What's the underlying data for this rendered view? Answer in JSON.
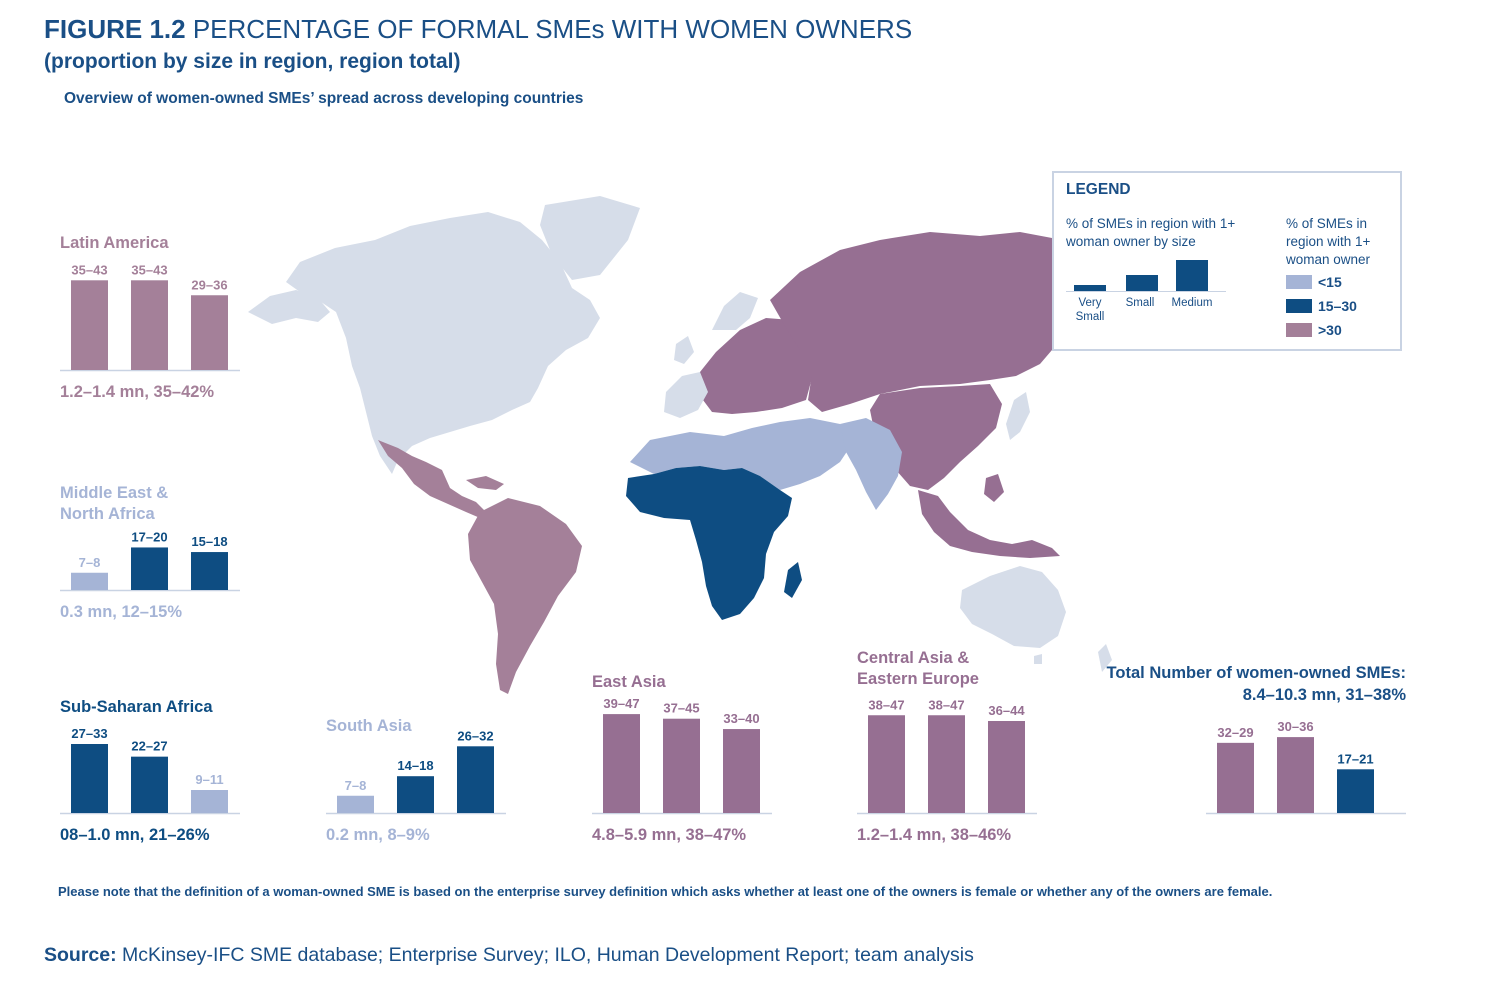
{
  "header": {
    "figure_label": "FIGURE 1.2",
    "title": "PERCENTAGE OF FORMAL SMEs WITH WOMEN OWNERS",
    "subtitle": "(proportion by size in region, region total)",
    "overview": "Overview of women-owned SMEs’ spread across developing countries"
  },
  "legend": {
    "title": "LEGEND",
    "size_heading": "% of SMEs in region with 1+ woman owner by size",
    "size_labels": [
      "Very Small",
      "Small",
      "Medium"
    ],
    "color_heading": "% of SMEs in region with 1+ woman owner",
    "color_classes": [
      {
        "label": "<15",
        "color": "#a5b4d6"
      },
      {
        "label": "15–30",
        "color": "#0e4d82"
      },
      {
        "label": ">30",
        "color": "#a48099"
      }
    ]
  },
  "colors": {
    "light": "#a5b4d6",
    "navy": "#0e4d82",
    "mauve": "#a48099",
    "purple": "#966f92",
    "map_grey": "#d6dde9",
    "text_blue": "#1a4f86"
  },
  "chart_data": [
    {
      "type": "bar",
      "region": "Latin America",
      "title_color": "#a48099",
      "categories": [
        "Very Small",
        "Small",
        "Medium"
      ],
      "labels": [
        "35–43",
        "35–43",
        "29–36"
      ],
      "values": [
        39,
        39,
        32.5
      ],
      "bar_colors": [
        "#a48099",
        "#a48099",
        "#a48099"
      ],
      "summary": "1.2–1.4 mn, 35–42%"
    },
    {
      "type": "bar",
      "region": "Middle East & North Africa",
      "title_color": "#a5b4d6",
      "categories": [
        "Very Small",
        "Small",
        "Medium"
      ],
      "labels": [
        "7–8",
        "17–20",
        "15–18"
      ],
      "values": [
        7.5,
        18.5,
        16.5
      ],
      "bar_colors": [
        "#a5b4d6",
        "#0e4d82",
        "#0e4d82"
      ],
      "summary": "0.3 mn, 12–15%"
    },
    {
      "type": "bar",
      "region": "Sub-Saharan Africa",
      "title_color": "#0e4d82",
      "categories": [
        "Very Small",
        "Small",
        "Medium"
      ],
      "labels": [
        "27–33",
        "22–27",
        "9–11"
      ],
      "values": [
        30,
        24.5,
        10
      ],
      "bar_colors": [
        "#0e4d82",
        "#0e4d82",
        "#a5b4d6"
      ],
      "summary": "08–1.0 mn, 21–26%"
    },
    {
      "type": "bar",
      "region": "South Asia",
      "title_color": "#a5b4d6",
      "categories": [
        "Very Small",
        "Small",
        "Medium"
      ],
      "labels": [
        "7–8",
        "14–18",
        "26–32"
      ],
      "values": [
        7.5,
        16,
        29
      ],
      "bar_colors": [
        "#a5b4d6",
        "#0e4d82",
        "#0e4d82"
      ],
      "summary": "0.2 mn, 8–9%"
    },
    {
      "type": "bar",
      "region": "East Asia",
      "title_color": "#966f92",
      "categories": [
        "Very Small",
        "Small",
        "Medium"
      ],
      "labels": [
        "39–47",
        "37–45",
        "33–40"
      ],
      "values": [
        43,
        41,
        36.5
      ],
      "bar_colors": [
        "#966f92",
        "#966f92",
        "#966f92"
      ],
      "summary": "4.8–5.9 mn, 38–47%"
    },
    {
      "type": "bar",
      "region": "Central Asia & Eastern Europe",
      "title_color": "#966f92",
      "categories": [
        "Very Small",
        "Small",
        "Medium"
      ],
      "labels": [
        "38–47",
        "38–47",
        "36–44"
      ],
      "values": [
        42.5,
        42.5,
        40
      ],
      "bar_colors": [
        "#966f92",
        "#966f92",
        "#966f92"
      ],
      "summary": "1.2–1.4 mn, 38–46%"
    },
    {
      "type": "bar",
      "region": "Total Number of women-owned SMEs:",
      "title_color": "#1a4f86",
      "categories": [
        "Very Small",
        "Small",
        "Medium"
      ],
      "labels": [
        "32–29",
        "30–36",
        "17–21"
      ],
      "values": [
        30.5,
        33,
        19
      ],
      "bar_colors": [
        "#966f92",
        "#966f92",
        "#0e4d82"
      ],
      "summary": "8.4–10.3 mn, 31–38%"
    }
  ],
  "map": {
    "regions": [
      {
        "name": "North America",
        "class": "not-covered",
        "color": "#d6dde9"
      },
      {
        "name": "Latin America",
        "class": ">30",
        "color": "#a48099"
      },
      {
        "name": "Middle East & North Africa",
        "class": "<15",
        "color": "#a5b4d6"
      },
      {
        "name": "Sub-Saharan Africa",
        "class": "15–30",
        "color": "#0e4d82"
      },
      {
        "name": "South Asia",
        "class": "<15",
        "color": "#a5b4d6"
      },
      {
        "name": "Europe & Central Asia",
        "class": ">30",
        "color": "#966f92"
      },
      {
        "name": "East Asia",
        "class": ">30",
        "color": "#966f92"
      },
      {
        "name": "Australia",
        "class": "not-covered",
        "color": "#d6dde9"
      }
    ]
  },
  "footer": {
    "note": "Please note that the definition of a woman-owned SME is based on the enterprise survey definition which asks whether at least one of the owners is female or whether any of the owners are female.",
    "source_label": "Source:",
    "source_text": "McKinsey-IFC SME database; Enterprise Survey; ILO, Human Development Report; team analysis"
  }
}
